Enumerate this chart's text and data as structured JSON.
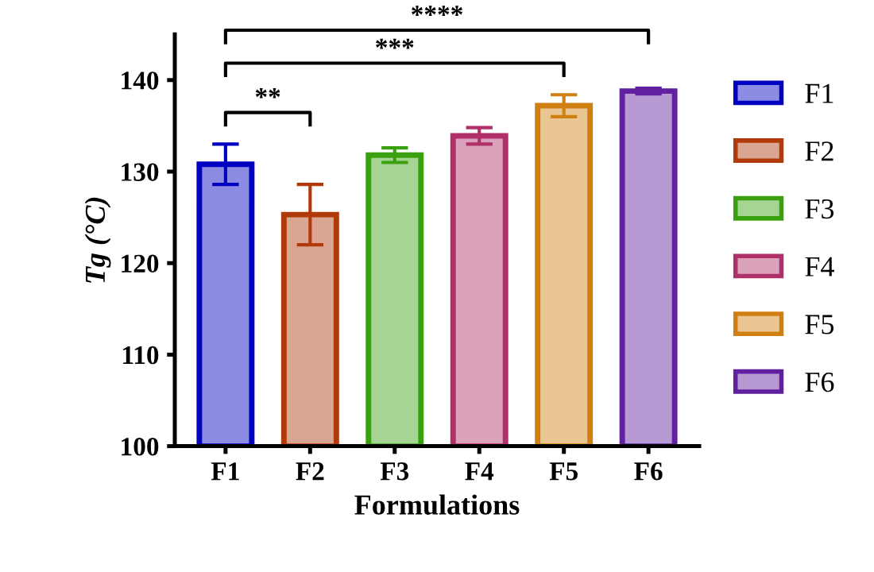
{
  "chart_data": {
    "type": "bar",
    "xlabel": "Formulations",
    "ylabel": "Tg (°C)",
    "categories": [
      "F1",
      "F2",
      "F3",
      "F4",
      "F5",
      "F6"
    ],
    "series": [
      {
        "name": "F1",
        "color": "#0000c0",
        "values": [
          130.8,
          null,
          null,
          null,
          null,
          null
        ],
        "errors": [
          2.2,
          null,
          null,
          null,
          null,
          null
        ]
      },
      {
        "name": "F2",
        "color": "#b03a0a",
        "values": [
          null,
          125.3,
          null,
          null,
          null,
          null
        ],
        "errors": [
          null,
          3.3,
          null,
          null,
          null,
          null
        ]
      },
      {
        "name": "F3",
        "color": "#3aa010",
        "values": [
          null,
          null,
          131.8,
          null,
          null,
          null
        ],
        "errors": [
          null,
          null,
          0.8,
          null,
          null,
          null
        ]
      },
      {
        "name": "F4",
        "color": "#b0306a",
        "values": [
          null,
          null,
          null,
          133.9,
          null,
          null
        ],
        "errors": [
          null,
          null,
          null,
          0.9,
          null,
          null
        ]
      },
      {
        "name": "F5",
        "color": "#d08010",
        "values": [
          null,
          null,
          null,
          null,
          137.2,
          null
        ],
        "errors": [
          null,
          null,
          null,
          null,
          1.2,
          null
        ]
      },
      {
        "name": "F6",
        "color": "#6020a0",
        "values": [
          null,
          null,
          null,
          null,
          null,
          138.8
        ],
        "errors": [
          null,
          null,
          null,
          null,
          null,
          0.3
        ]
      }
    ],
    "legend": "right",
    "ylim": [
      100,
      145
    ],
    "yticks": [
      100,
      110,
      120,
      130,
      140
    ],
    "grid": false,
    "annotations": [
      "**",
      "***",
      "****"
    ]
  }
}
